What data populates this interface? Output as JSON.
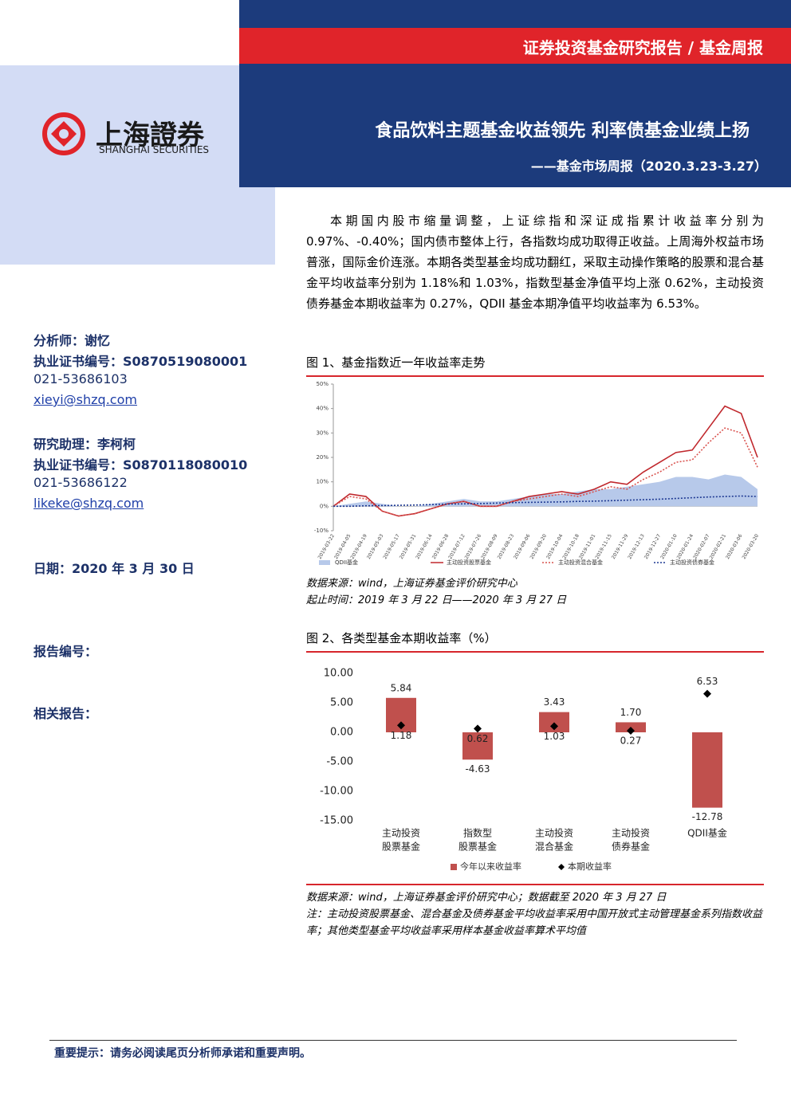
{
  "header": {
    "report_type": "证券投资基金研究报告 / 基金周报",
    "logo_cn": "上海證券",
    "logo_en": "SHANGHAI SECURITIES",
    "title": "食品饮料主题基金收益领先 利率债基金业绩上扬",
    "subtitle": "——基金市场周报（2020.3.23-3.27）"
  },
  "sidebar": {
    "analyst": "分析师：谢忆",
    "analyst_cert": "执业证书编号：S0870519080001",
    "analyst_phone": "021-53686103",
    "analyst_email": "xieyi@shzq.com",
    "assistant": "研究助理：李柯柯",
    "assistant_cert": "执业证书编号：S0870118080010",
    "assistant_phone": "021-53686122",
    "assistant_email": "likeke@shzq.com",
    "date": "日期：2020 年 3 月 30 日",
    "report_no": "报告编号：",
    "related": "相关报告："
  },
  "summary": "本期国内股市缩量调整，上证综指和深证成指累计收益率分别为 0.97%、-0.40%；国内债市整体上行，各指数均成功取得正收益。上周海外权益市场普涨，国际金价连涨。本期各类型基金均成功翻红，采取主动操作策略的股票和混合基金平均收益率分别为 1.18%和 1.03%，指数型基金净值平均上涨 0.62%，主动投资债券基金本期收益率为 0.27%，QDII 基金本期净值平均收益率为 6.53%。",
  "figure1": {
    "caption": "图 1、基金指数近一年收益率走势",
    "chart": {
      "type": "line",
      "categories": [
        "2019-03-22",
        "2019-04-05",
        "2019-04-19",
        "2019-05-03",
        "2019-05-17",
        "2019-05-31",
        "2019-06-14",
        "2019-06-28",
        "2019-07-12",
        "2019-07-26",
        "2019-08-09",
        "2019-08-23",
        "2019-09-06",
        "2019-09-20",
        "2019-10-04",
        "2019-10-18",
        "2019-11-01",
        "2019-11-15",
        "2019-11-29",
        "2019-12-13",
        "2019-12-27",
        "2020-01-10",
        "2020-01-24",
        "2020-02-07",
        "2020-02-21",
        "2020-03-06",
        "2020-03-20"
      ],
      "series": [
        {
          "name": "QDII基金",
          "color": "#b7c9ea",
          "style": "area",
          "values": [
            0,
            1,
            2,
            1,
            0,
            0,
            1,
            2,
            3,
            2,
            2,
            3,
            4,
            5,
            5,
            6,
            7,
            7,
            8,
            9,
            10,
            12,
            12,
            11,
            13,
            12,
            7
          ]
        },
        {
          "name": "主动投资股票基金",
          "color": "#c0282d",
          "style": "solid",
          "values": [
            0,
            5,
            4,
            -2,
            -4,
            -3,
            -1,
            1,
            2,
            0,
            0,
            2,
            4,
            5,
            6,
            5,
            7,
            10,
            9,
            14,
            18,
            22,
            23,
            32,
            41,
            38,
            20
          ]
        },
        {
          "name": "主动投资混合基金",
          "color": "#d9534f",
          "style": "dotted",
          "values": [
            0,
            4,
            3,
            -2,
            -4,
            -3,
            -1,
            1,
            2,
            0,
            0,
            2,
            3,
            4,
            5,
            4,
            6,
            8,
            7,
            11,
            14,
            18,
            19,
            26,
            32,
            30,
            16
          ]
        },
        {
          "name": "主动投资债券基金",
          "color": "#1f3a93",
          "style": "dotted",
          "values": [
            0,
            0,
            0.2,
            0.3,
            0.4,
            0.5,
            0.7,
            0.9,
            1,
            1.1,
            1.3,
            1.5,
            1.6,
            1.7,
            1.8,
            2,
            2.1,
            2.3,
            2.5,
            2.7,
            2.9,
            3.2,
            3.5,
            3.8,
            4,
            4.2,
            4
          ]
        }
      ],
      "ylim": [
        -10,
        50
      ],
      "yticks": [
        {
          "value": -10,
          "label": "-10%"
        },
        {
          "value": 0,
          "label": "0%"
        },
        {
          "value": 10,
          "label": "10%"
        },
        {
          "value": 20,
          "label": "20%"
        },
        {
          "value": 30,
          "label": "30%"
        },
        {
          "value": 40,
          "label": "40%"
        },
        {
          "value": 50,
          "label": "50%"
        }
      ],
      "grid": false
    },
    "source": "数据来源：wind，上海证券基金评价研究中心",
    "period": "起止时间：2019 年 3 月 22 日——2020 年 3 月 27 日"
  },
  "figure2": {
    "caption": "图 2、各类型基金本期收益率（%）",
    "chart": {
      "type": "bar",
      "categories": [
        [
          "主动投资",
          "股票基金"
        ],
        [
          "指数型",
          "股票基金"
        ],
        [
          "主动投资",
          "混合基金"
        ],
        [
          "主动投资",
          "债券基金"
        ],
        [
          "QDII基金"
        ]
      ],
      "series": [
        {
          "name": "今年以来收益率",
          "color": "#c0504d",
          "marker": "bar",
          "values": [
            5.84,
            -4.63,
            3.43,
            1.7,
            -12.78
          ],
          "value_labels": [
            "5.84",
            "-4.63",
            "3.43",
            "1.70",
            "-12.78"
          ]
        },
        {
          "name": "本期收益率",
          "color": "#000000",
          "marker": "diamond",
          "values": [
            1.18,
            0.62,
            1.03,
            0.27,
            6.53
          ],
          "value_labels": [
            "1.18",
            "0.62",
            "1.03",
            "0.27",
            "6.53"
          ]
        }
      ],
      "ylim": [
        -15,
        10
      ],
      "yticks": [
        {
          "value": 10,
          "label": "10.00"
        },
        {
          "value": 5,
          "label": "5.00"
        },
        {
          "value": 0,
          "label": "0.00"
        },
        {
          "value": -5,
          "label": "-5.00"
        },
        {
          "value": -10,
          "label": "-10.00"
        },
        {
          "value": -15,
          "label": "-15.00"
        }
      ],
      "grid": false
    },
    "source": "数据来源：wind，上海证券基金评价研究中心；数据截至 2020 年 3 月 27 日",
    "notes": "注：主动投资股票基金、混合基金及债券基金平均收益率采用中国开放式主动管理基金系列指数收益率；其他类型基金平均收益率采用样本基金收益率算术平均值"
  },
  "footer": "重要提示：请务必阅读尾页分析师承诺和重要声明。"
}
